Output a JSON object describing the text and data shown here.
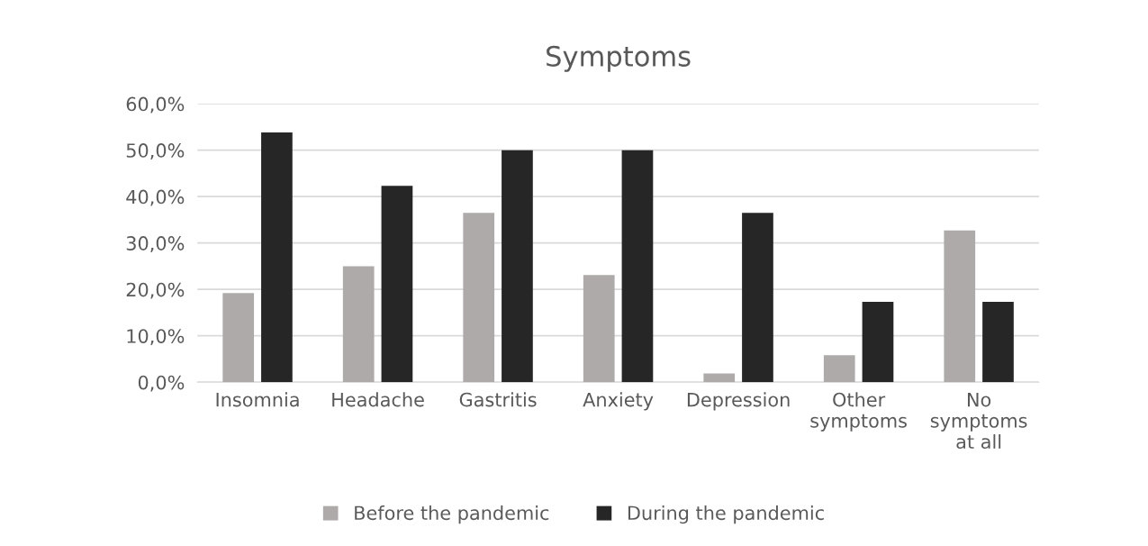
{
  "chart_data": {
    "type": "bar",
    "title": "Symptoms",
    "categories": [
      "Insomnia",
      "Headache",
      "Gastritis",
      "Anxiety",
      "Depression",
      "Other\nsymptoms",
      "No\nsymptoms\nat all"
    ],
    "series": [
      {
        "name": "Before the pandemic",
        "color": "#aeaaaa",
        "values": [
          19.2,
          25.0,
          36.5,
          23.1,
          1.9,
          5.8,
          32.7
        ]
      },
      {
        "name": "During the pandemic",
        "color": "#262626",
        "values": [
          53.8,
          42.3,
          50.0,
          50.0,
          36.5,
          17.3,
          17.3
        ]
      }
    ],
    "ylim": [
      0,
      60
    ],
    "yticks": [
      {
        "value": 0,
        "label": "0,0%"
      },
      {
        "value": 10,
        "label": "10,0%"
      },
      {
        "value": 20,
        "label": "20,0%"
      },
      {
        "value": 30,
        "label": "30,0%"
      },
      {
        "value": 40,
        "label": "40,0%"
      },
      {
        "value": 50,
        "label": "50,0%"
      },
      {
        "value": 60,
        "label": "60,0%"
      }
    ],
    "grid": "y",
    "legend": "bottom"
  }
}
